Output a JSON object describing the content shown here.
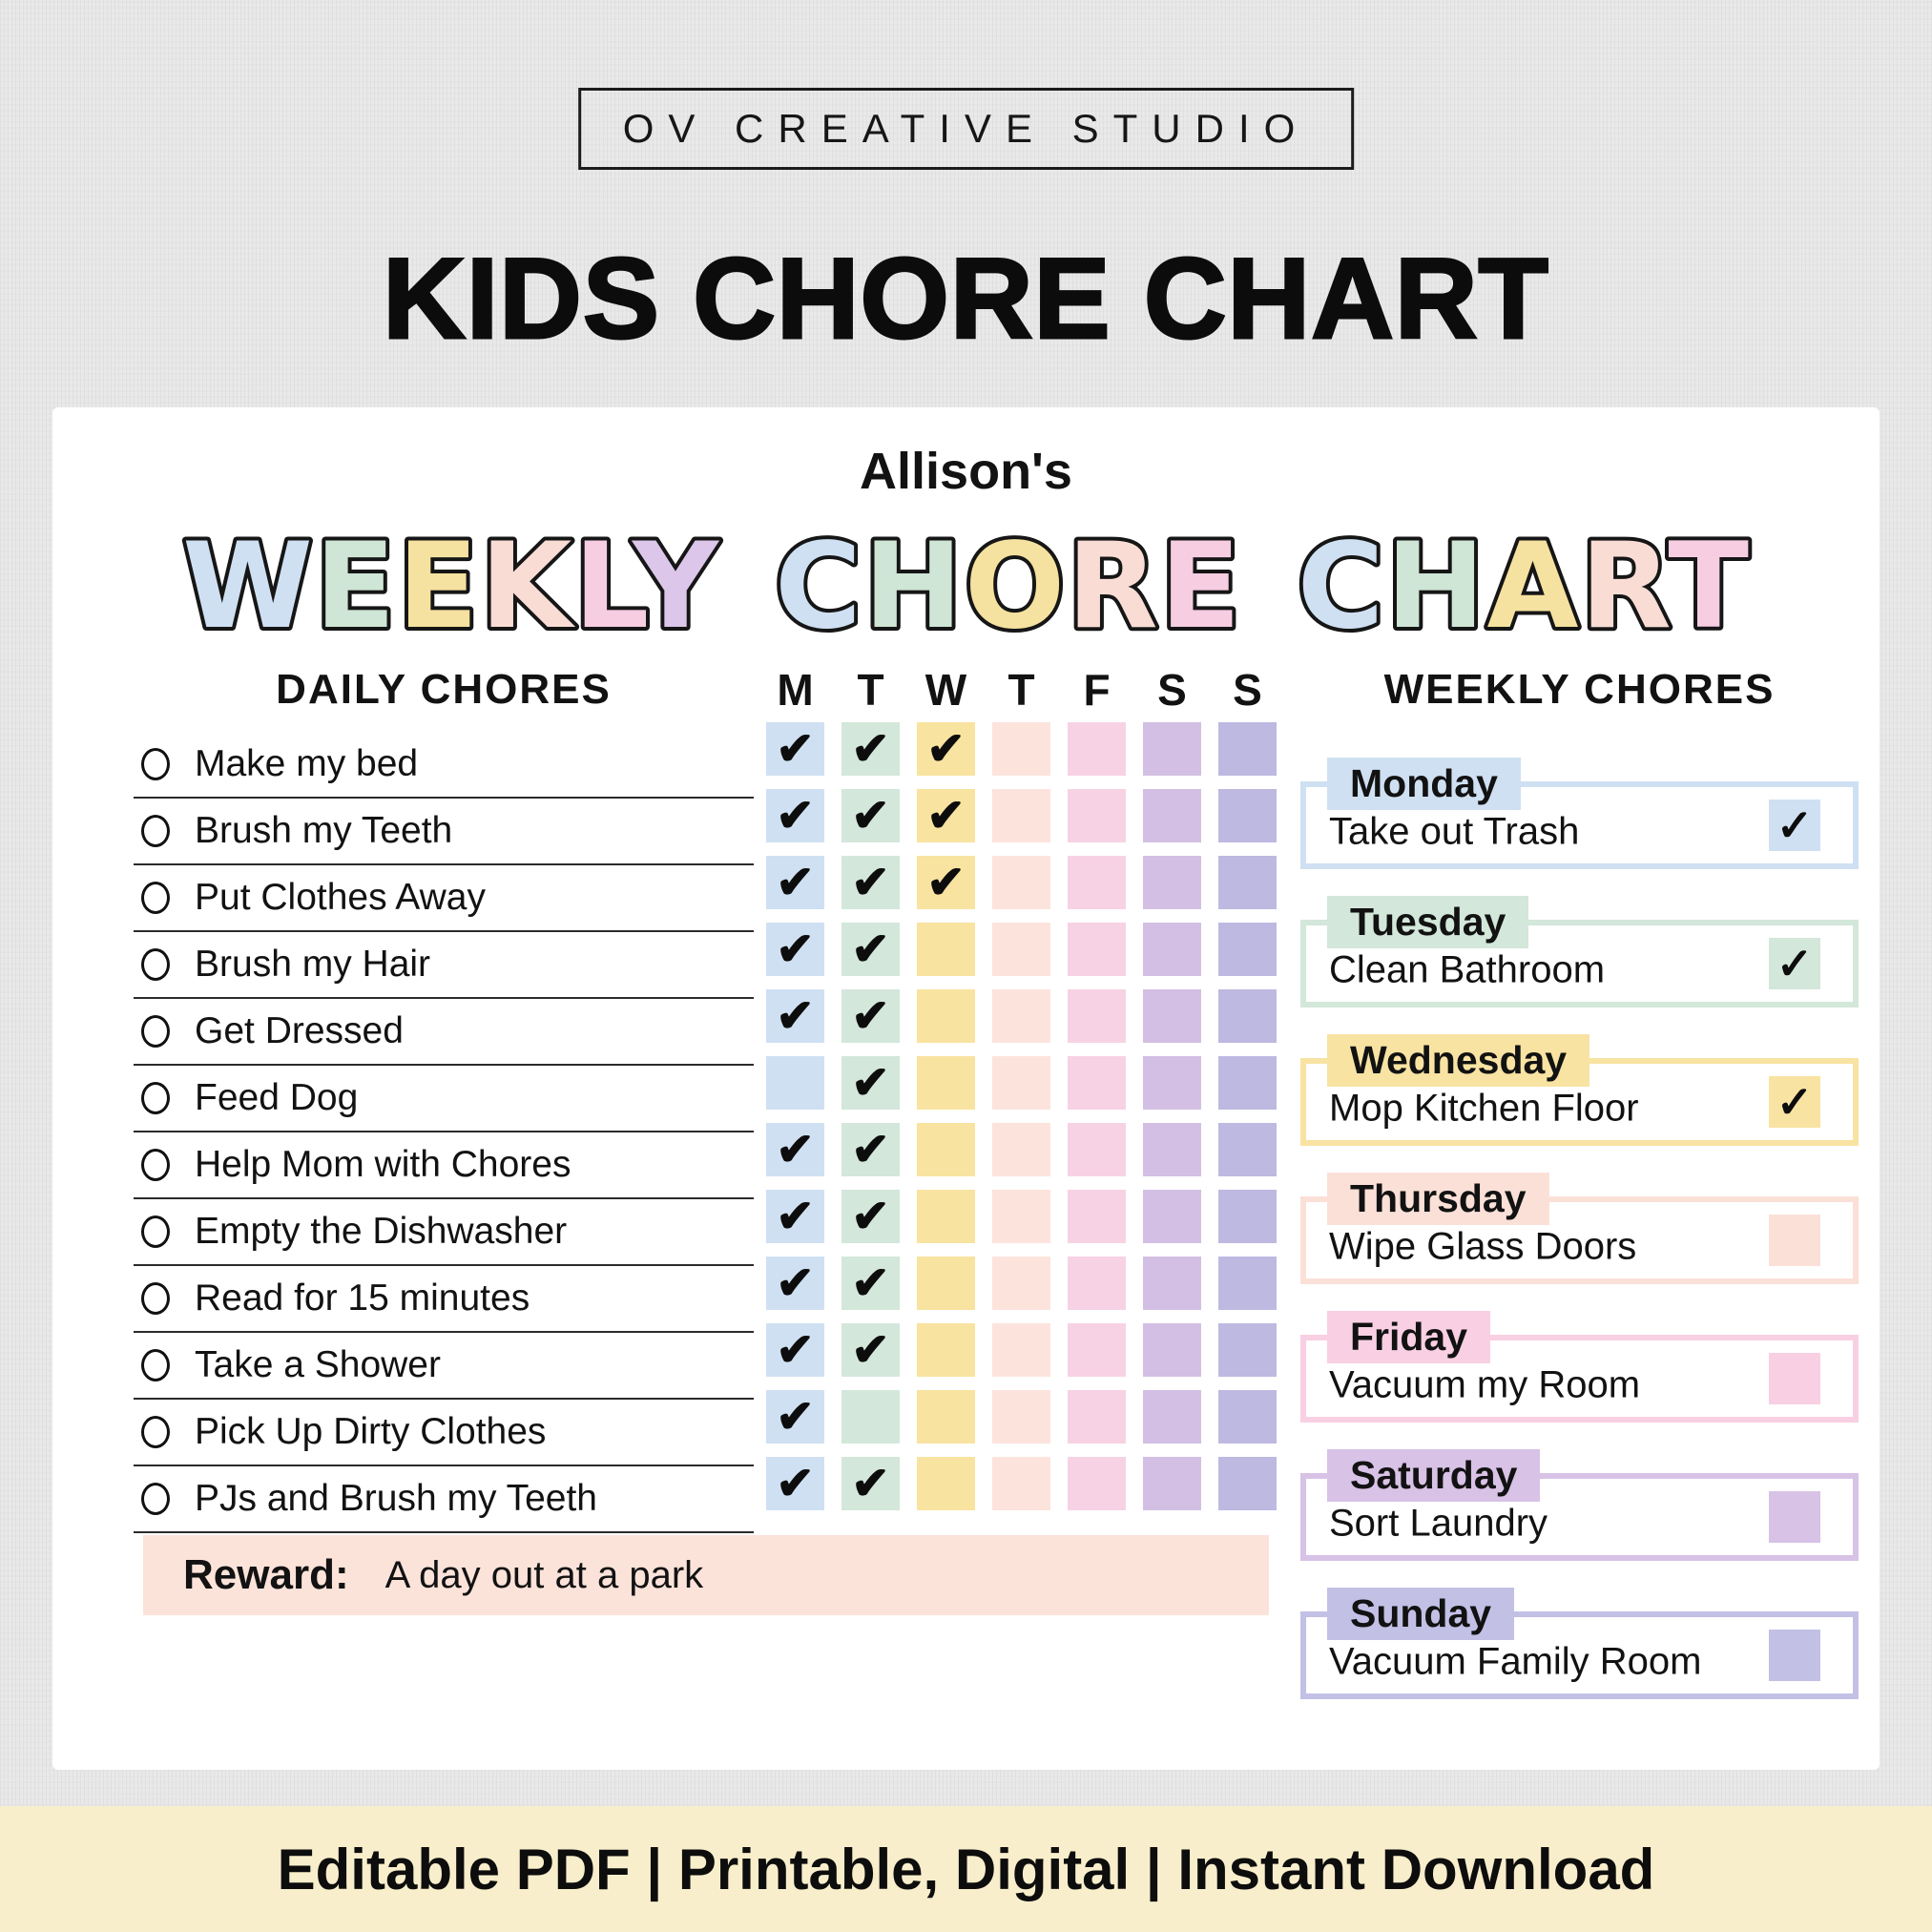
{
  "brand": {
    "name": "OV CREATIVE STUDIO"
  },
  "headline": "KIDS CHORE CHART",
  "chart": {
    "owner": "Allison's",
    "title_words": [
      "WEEKLY",
      "CHORE",
      "CHART"
    ],
    "letter_colors": [
      "#cfe0f2",
      "#cfe5d6",
      "#f6e2a0",
      "#f9ddd5",
      "#f7cde2",
      "#dcc6ea"
    ],
    "daily": {
      "header": "DAILY CHORES",
      "items": [
        "Make my bed",
        "Brush my Teeth",
        "Put Clothes Away",
        "Brush my Hair",
        "Get Dressed",
        "Feed Dog",
        "Help Mom with Chores",
        "Empty the Dishwasher",
        "Read for 15 minutes",
        "Take a Shower",
        "Pick Up Dirty Clothes",
        "PJs and Brush my Teeth"
      ]
    },
    "days": [
      "M",
      "T",
      "W",
      "T",
      "F",
      "S",
      "S"
    ],
    "day_colors": [
      "#cfe0f2",
      "#d3e7da",
      "#f8e3a0",
      "#fce4dd",
      "#f7d2e4",
      "#d3bfe3",
      "#bdb9e1"
    ],
    "grid_checks": [
      [
        1,
        1,
        1,
        0,
        0,
        0,
        0
      ],
      [
        1,
        1,
        1,
        0,
        0,
        0,
        0
      ],
      [
        1,
        1,
        1,
        0,
        0,
        0,
        0
      ],
      [
        1,
        1,
        0,
        0,
        0,
        0,
        0
      ],
      [
        1,
        1,
        0,
        0,
        0,
        0,
        0
      ],
      [
        0,
        1,
        0,
        0,
        0,
        0,
        0
      ],
      [
        1,
        1,
        0,
        0,
        0,
        0,
        0
      ],
      [
        1,
        1,
        0,
        0,
        0,
        0,
        0
      ],
      [
        1,
        1,
        0,
        0,
        0,
        0,
        0
      ],
      [
        1,
        1,
        0,
        0,
        0,
        0,
        0
      ],
      [
        1,
        0,
        0,
        0,
        0,
        0,
        0
      ],
      [
        1,
        1,
        0,
        0,
        0,
        0,
        0
      ]
    ],
    "weekly": {
      "header": "WEEKLY CHORES",
      "items": [
        {
          "day": "Monday",
          "task": "Take out Trash",
          "checked": true,
          "color": "#cfe0f2"
        },
        {
          "day": "Tuesday",
          "task": "Clean Bathroom",
          "checked": true,
          "color": "#d3e7da"
        },
        {
          "day": "Wednesday",
          "task": "Mop Kitchen Floor",
          "checked": true,
          "color": "#f8e3a2"
        },
        {
          "day": "Thursday",
          "task": "Wipe Glass Doors",
          "checked": false,
          "color": "#fbe0d8"
        },
        {
          "day": "Friday",
          "task": "Vacuum my Room",
          "checked": false,
          "color": "#f8cfe3"
        },
        {
          "day": "Saturday",
          "task": "Sort Laundry",
          "checked": false,
          "color": "#d8c2e6"
        },
        {
          "day": "Sunday",
          "task": "Vacuum Family Room",
          "checked": false,
          "color": "#c3c0e6"
        }
      ]
    },
    "reward": {
      "label": "Reward:",
      "value": "A day out at a park",
      "bg": "#fbe3da"
    }
  },
  "footer": {
    "text": "Editable PDF | Printable, Digital | Instant Download",
    "bg": "#f8eecb"
  },
  "glyphs": {
    "grid_check": "✔",
    "weekly_check": "✓"
  }
}
